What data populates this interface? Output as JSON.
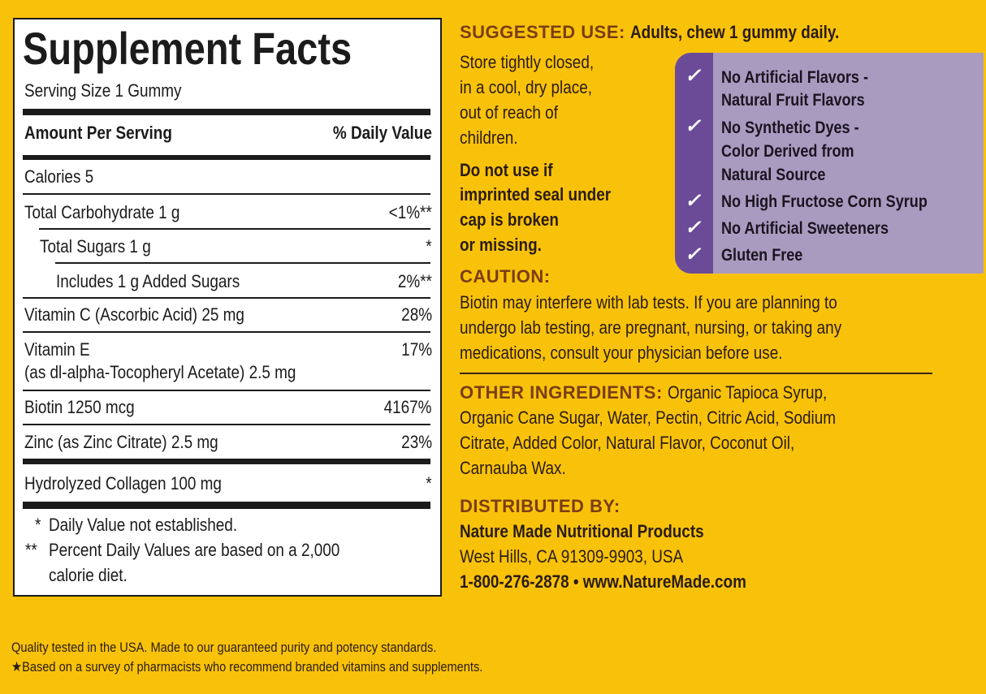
{
  "facts": {
    "title": "Supplement Facts",
    "serving_size": "Serving Size 1 Gummy",
    "amount_header": "Amount Per Serving",
    "dv_header": "% Daily Value",
    "calories": "Calories  5",
    "rows": [
      {
        "name": "Total Carbohydrate  1 g",
        "dv": "<1%**"
      },
      {
        "name": "Total Sugars  1 g",
        "dv": "*"
      },
      {
        "name": "Includes 1 g Added Sugars",
        "dv": "2%**"
      },
      {
        "name": "Vitamin C (Ascorbic Acid)  25 mg",
        "dv": "28%"
      },
      {
        "name": "Vitamin E",
        "sub": "(as dl-alpha-Tocopheryl Acetate) 2.5 mg",
        "dv": "17%"
      },
      {
        "name": "Biotin 1250 mcg",
        "dv": "4167%"
      },
      {
        "name": "Zinc (as Zinc Citrate) 2.5 mg",
        "dv": "23%"
      },
      {
        "name": "Hydrolyzed Collagen 100 mg",
        "dv": "*"
      }
    ],
    "footnotes": [
      {
        "mark": "*",
        "text": "Daily Value not established."
      },
      {
        "mark": "**",
        "text": "Percent Daily Values are based on a 2,000",
        "text2": "calorie diet."
      }
    ]
  },
  "suggested_use": {
    "heading": "SUGGESTED USE:",
    "text": "Adults, chew 1 gummy daily.",
    "storage": [
      "Store tightly closed,",
      "in a cool, dry place,",
      "out of reach of",
      "children."
    ],
    "warning": [
      "Do not use if",
      "imprinted seal under",
      "cap is broken",
      "or missing."
    ]
  },
  "badges": {
    "colors": {
      "strip": "#6b4a98",
      "box": "#a99bc0"
    },
    "icon": "check-icon",
    "items": [
      [
        "No Artificial Flavors -",
        "Natural Fruit Flavors"
      ],
      [
        "No Synthetic Dyes -",
        "Color Derived from",
        "Natural Source"
      ],
      [
        "No High Fructose Corn Syrup"
      ],
      [
        "No Artificial Sweeteners"
      ],
      [
        "Gluten Free"
      ]
    ]
  },
  "caution": {
    "heading": "CAUTION:",
    "lines": [
      "Biotin may interfere with lab tests. If you are planning to",
      "undergo lab testing, are pregnant, nursing, or taking any",
      "medications, consult your physician before use."
    ]
  },
  "ingredients": {
    "heading": "OTHER INGREDIENTS:",
    "first": "Organic Tapioca Syrup,",
    "lines": [
      "Organic Cane Sugar, Water, Pectin, Citric Acid, Sodium",
      "Citrate, Added Color, Natural Flavor, Coconut Oil,",
      "Carnauba Wax."
    ]
  },
  "distributor": {
    "heading": "DISTRIBUTED BY:",
    "name": "Nature Made Nutritional Products",
    "address": "West Hills, CA 91309-9903, USA",
    "contact": "1-800-276-2878 • www.NatureMade.com"
  },
  "footer": [
    "Quality tested in the USA. Made to our guaranteed purity and potency standards.",
    "★Based on a survey of pharmacists who recommend branded vitamins and supplements."
  ],
  "colors": {
    "background": "#f9c20a",
    "heading": "#7b3d14"
  }
}
